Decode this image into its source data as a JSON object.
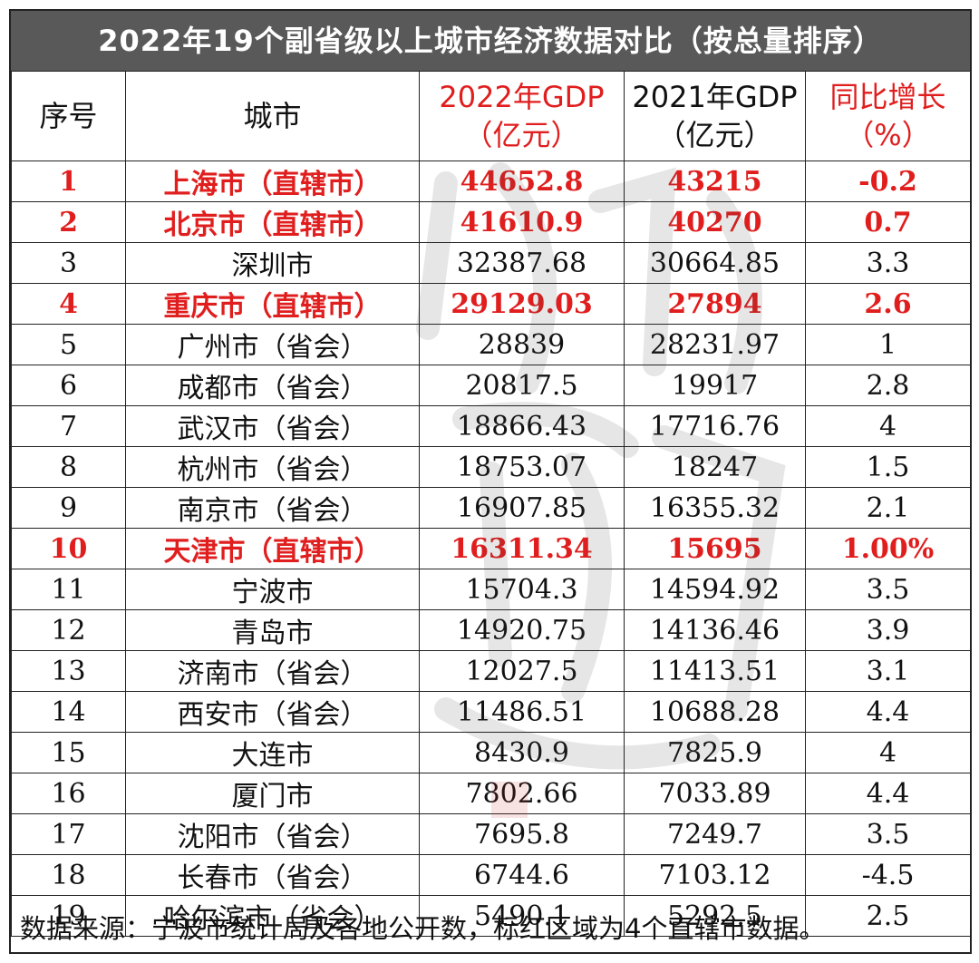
{
  "title": "2022年19个副省级以上城市经济数据对比（按总量排序）",
  "headers": {
    "idx": "序号",
    "city": "城市",
    "gdp2022_l1": "2022年GDP",
    "gdp2022_l2": "（亿元）",
    "gdp2021_l1": "2021年GDP",
    "gdp2021_l2": "（亿元）",
    "growth_l1": "同比增长",
    "growth_l2": "（%）"
  },
  "rows": [
    {
      "idx": "1",
      "city": "上海市（直辖市）",
      "gdp2022": "44652.8",
      "gdp2021": "43215",
      "growth": "-0.2",
      "highlight": true
    },
    {
      "idx": "2",
      "city": "北京市（直辖市）",
      "gdp2022": "41610.9",
      "gdp2021": "40270",
      "growth": "0.7",
      "highlight": true
    },
    {
      "idx": "3",
      "city": "深圳市",
      "gdp2022": "32387.68",
      "gdp2021": "30664.85",
      "growth": "3.3",
      "highlight": false
    },
    {
      "idx": "4",
      "city": "重庆市（直辖市）",
      "gdp2022": "29129.03",
      "gdp2021": "27894",
      "growth": "2.6",
      "highlight": true
    },
    {
      "idx": "5",
      "city": "广州市（省会）",
      "gdp2022": "28839",
      "gdp2021": "28231.97",
      "growth": "1",
      "highlight": false
    },
    {
      "idx": "6",
      "city": "成都市（省会）",
      "gdp2022": "20817.5",
      "gdp2021": "19917",
      "growth": "2.8",
      "highlight": false
    },
    {
      "idx": "7",
      "city": "武汉市（省会）",
      "gdp2022": "18866.43",
      "gdp2021": "17716.76",
      "growth": "4",
      "highlight": false
    },
    {
      "idx": "8",
      "city": "杭州市（省会）",
      "gdp2022": "18753.07",
      "gdp2021": "18247",
      "growth": "1.5",
      "highlight": false
    },
    {
      "idx": "9",
      "city": "南京市（省会）",
      "gdp2022": "16907.85",
      "gdp2021": "16355.32",
      "growth": "2.1",
      "highlight": false
    },
    {
      "idx": "10",
      "city": "天津市（直辖市）",
      "gdp2022": "16311.34",
      "gdp2021": "15695",
      "growth": "1.00%",
      "highlight": true
    },
    {
      "idx": "11",
      "city": "宁波市",
      "gdp2022": "15704.3",
      "gdp2021": "14594.92",
      "growth": "3.5",
      "highlight": false
    },
    {
      "idx": "12",
      "city": "青岛市",
      "gdp2022": "14920.75",
      "gdp2021": "14136.46",
      "growth": "3.9",
      "highlight": false
    },
    {
      "idx": "13",
      "city": "济南市（省会）",
      "gdp2022": "12027.5",
      "gdp2021": "11413.51",
      "growth": "3.1",
      "highlight": false
    },
    {
      "idx": "14",
      "city": "西安市（省会）",
      "gdp2022": "11486.51",
      "gdp2021": "10688.28",
      "growth": "4.4",
      "highlight": false
    },
    {
      "idx": "15",
      "city": "大连市",
      "gdp2022": "8430.9",
      "gdp2021": "7825.9",
      "growth": "4",
      "highlight": false
    },
    {
      "idx": "16",
      "city": "厦门市",
      "gdp2022": "7802.66",
      "gdp2021": "7033.89",
      "growth": "4.4",
      "highlight": false
    },
    {
      "idx": "17",
      "city": "沈阳市（省会）",
      "gdp2022": "7695.8",
      "gdp2021": "7249.7",
      "growth": "3.5",
      "highlight": false
    },
    {
      "idx": "18",
      "city": "长春市（省会）",
      "gdp2022": "6744.6",
      "gdp2021": "7103.12",
      "growth": "-4.5",
      "highlight": false
    },
    {
      "idx": "19",
      "city": "哈尔滨市（省会）",
      "gdp2022": "5490.1",
      "gdp2021": "5292.5",
      "growth": "2.5",
      "highlight": false
    }
  ],
  "footer": "数据来源：宁波市统计局及各地公开数，标红区域为4个直辖市数据。",
  "colors": {
    "title_bg": "#595959",
    "highlight": "#e01e1e"
  },
  "watermark": "calligraphy-watermark"
}
